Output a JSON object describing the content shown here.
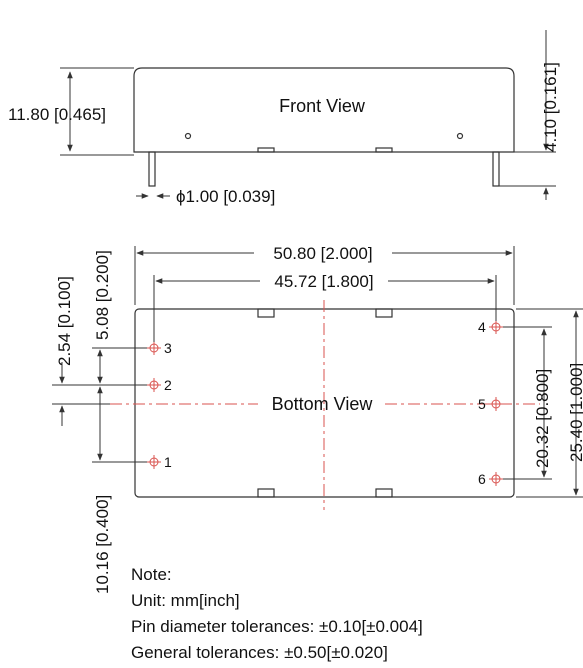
{
  "front_view": {
    "title": "Front View",
    "height_dim": "11.80 [0.465]",
    "pin_length_dim": "4.10 [0.161]",
    "pin_diameter_dim": "ϕ1.00 [0.039]"
  },
  "bottom_view": {
    "title": "Bottom View",
    "width_dim": "50.80 [2.000]",
    "pin_span_dim": "45.72 [1.800]",
    "height_dim": "25.40 [1.000]",
    "right_pin_span_dim": "20.32 [0.800]",
    "pitch_small_dim": "2.54 [0.100]",
    "pitch_mid_dim": "5.08 [0.200]",
    "left_pin_span_dim": "10.16 [0.400]",
    "pins": [
      "1",
      "2",
      "3",
      "4",
      "5",
      "6"
    ]
  },
  "notes": {
    "heading": "Note:",
    "unit": "Unit: mm[inch]",
    "pin_tolerance": "Pin diameter tolerances: ±0.10[±0.004]",
    "general_tolerance": "General tolerances: ±0.50[±0.020]"
  },
  "colors": {
    "outline": "#333333",
    "centerline": "#d9534f",
    "text": "#111111"
  }
}
